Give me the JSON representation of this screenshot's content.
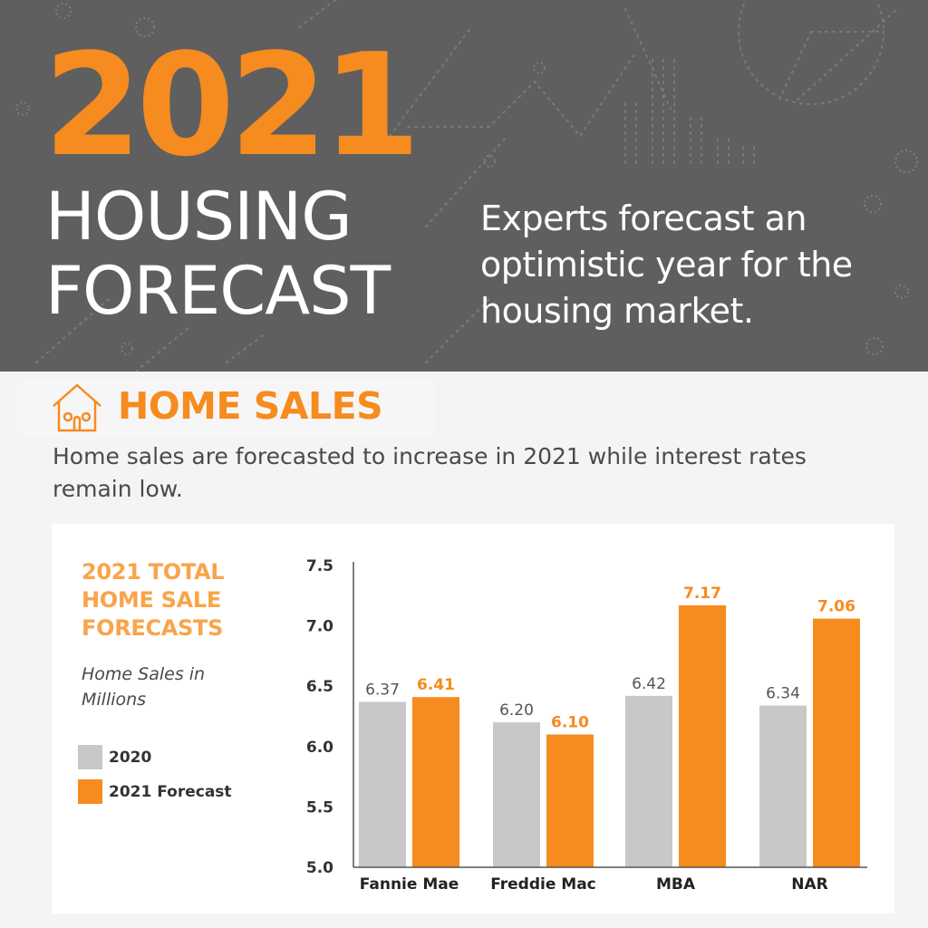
{
  "header": {
    "year": "2021",
    "title_line1": "HOUSING",
    "title_line2": "FORECAST",
    "tagline": "Experts forecast an optimistic year for the housing market."
  },
  "section": {
    "icon": "house-icon",
    "title": "HOME SALES",
    "intro": "Home sales are forecasted to increase in 2021 while interest rates remain low."
  },
  "chart": {
    "title": "2021 TOTAL HOME SALE FORECASTS",
    "units": "Home Sales in Millions",
    "legend": [
      "2020",
      "2021 Forecast"
    ]
  },
  "colors": {
    "header_bg": "#5f5f5f",
    "accent": "#f68b1f",
    "bar_2020": "#c8c8c8",
    "bar_2021": "#f68b1f"
  },
  "chart_data": {
    "type": "bar",
    "categories": [
      "Fannie Mae",
      "Freddie Mac",
      "MBA",
      "NAR"
    ],
    "series": [
      {
        "name": "2020",
        "values": [
          6.37,
          6.2,
          6.42,
          6.34
        ],
        "labels": [
          "6.37",
          "6.20",
          "6.42",
          "6.34"
        ]
      },
      {
        "name": "2021 Forecast",
        "values": [
          6.41,
          6.1,
          7.17,
          7.06
        ],
        "labels": [
          "6.41",
          "6.10",
          "7.17",
          "7.06"
        ]
      }
    ],
    "ylim": [
      5.0,
      7.5
    ],
    "yticks": [
      "5.0",
      "5.5",
      "6.0",
      "6.5",
      "7.0",
      "7.5"
    ],
    "grid": false,
    "legend_position": "left"
  }
}
